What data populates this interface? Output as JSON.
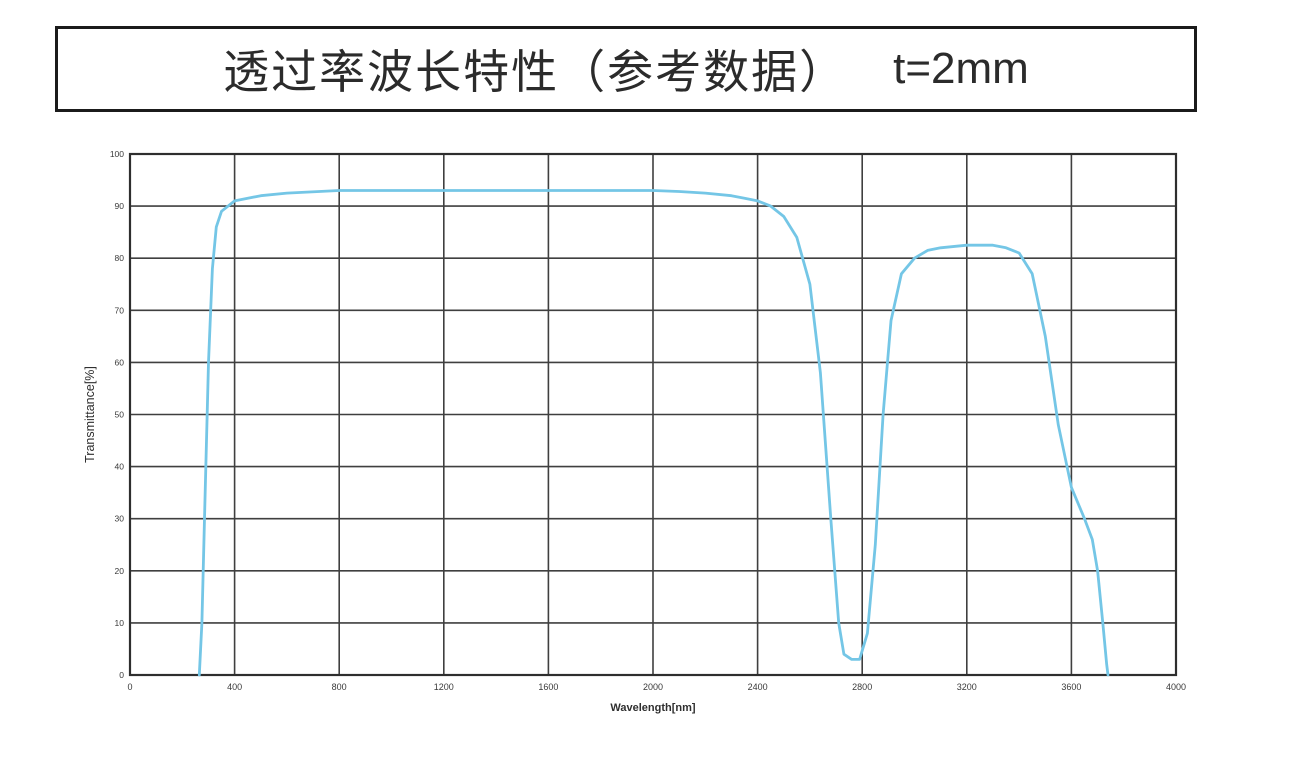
{
  "header": {
    "title": "透过率波长特性（参考数据）",
    "thickness": "t=2mm"
  },
  "chart_data": {
    "type": "line",
    "title": "透过率波长特性（参考数据） t=2mm",
    "xlabel": "Wavelength[nm]",
    "ylabel": "Transmittance[%]",
    "xlim": [
      0,
      4000
    ],
    "ylim": [
      0,
      100
    ],
    "x_ticks": [
      0,
      400,
      800,
      1200,
      1600,
      2000,
      2400,
      2800,
      3200,
      3600,
      4000
    ],
    "y_ticks": [
      0,
      10,
      20,
      30,
      40,
      50,
      60,
      70,
      80,
      90,
      100
    ],
    "grid": true,
    "legend": "none",
    "colors": {
      "line": "#74c6e6",
      "grid": "#3f3f3f",
      "border": "#2e2e2e",
      "tick_text": "#3a3a3a",
      "axis_text": "#2f2f2f",
      "background": "#ffffff"
    },
    "series": [
      {
        "name": "t=2mm",
        "points": [
          [
            265,
            0
          ],
          [
            275,
            10
          ],
          [
            285,
            30
          ],
          [
            300,
            60
          ],
          [
            315,
            78
          ],
          [
            330,
            86
          ],
          [
            350,
            89
          ],
          [
            400,
            91
          ],
          [
            500,
            92
          ],
          [
            600,
            92.5
          ],
          [
            800,
            93
          ],
          [
            1000,
            93
          ],
          [
            1200,
            93
          ],
          [
            1400,
            93
          ],
          [
            1600,
            93
          ],
          [
            1800,
            93
          ],
          [
            2000,
            93
          ],
          [
            2100,
            92.8
          ],
          [
            2200,
            92.5
          ],
          [
            2300,
            92
          ],
          [
            2350,
            91.5
          ],
          [
            2400,
            91
          ],
          [
            2450,
            90
          ],
          [
            2500,
            88
          ],
          [
            2550,
            84
          ],
          [
            2600,
            75
          ],
          [
            2640,
            58
          ],
          [
            2680,
            30
          ],
          [
            2710,
            10
          ],
          [
            2730,
            4
          ],
          [
            2760,
            3
          ],
          [
            2790,
            3
          ],
          [
            2820,
            8
          ],
          [
            2850,
            25
          ],
          [
            2880,
            50
          ],
          [
            2910,
            68
          ],
          [
            2950,
            77
          ],
          [
            3000,
            80
          ],
          [
            3050,
            81.5
          ],
          [
            3100,
            82
          ],
          [
            3200,
            82.5
          ],
          [
            3300,
            82.5
          ],
          [
            3350,
            82
          ],
          [
            3400,
            81
          ],
          [
            3450,
            77
          ],
          [
            3500,
            65
          ],
          [
            3550,
            48
          ],
          [
            3600,
            36
          ],
          [
            3650,
            30
          ],
          [
            3680,
            26
          ],
          [
            3700,
            20
          ],
          [
            3720,
            10
          ],
          [
            3735,
            2
          ],
          [
            3740,
            0
          ]
        ]
      }
    ]
  }
}
